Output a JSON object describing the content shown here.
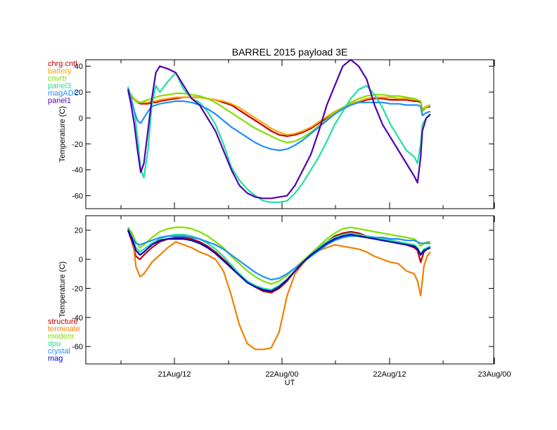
{
  "title": "BARREL 2015 payload 3E",
  "xlabel": "UT",
  "x_ticks": [
    "21Aug/12",
    "22Aug/00",
    "22Aug/12",
    "23Aug/00"
  ],
  "chart_data": [
    {
      "type": "line",
      "ylabel": "Temperature (C)",
      "xlim": [
        0,
        42
      ],
      "ylim": [
        -70,
        45
      ],
      "y_ticks": [
        -60,
        -40,
        -20,
        0,
        20,
        40
      ],
      "x": [
        0,
        0.4,
        0.8,
        1.2,
        1.6,
        2,
        2.5,
        3,
        3.5,
        4,
        5,
        6,
        7,
        8,
        9,
        10,
        11,
        12,
        13,
        14,
        15,
        16,
        17,
        18,
        19,
        20,
        21,
        22,
        23,
        24,
        25,
        26,
        27,
        28,
        29,
        30,
        31,
        32,
        33,
        34,
        35,
        36,
        36.4,
        36.8,
        37,
        37.5,
        38
      ],
      "series": [
        {
          "name": "chrg cntl",
          "color": "#c00000",
          "values": [
            19,
            17,
            14,
            12,
            11,
            11,
            11,
            12,
            12,
            13,
            14,
            15,
            16,
            16,
            16,
            15,
            14,
            12,
            10,
            6,
            2,
            -2,
            -6,
            -10,
            -13,
            -14,
            -13,
            -11,
            -8,
            -4,
            0,
            4,
            7,
            10,
            12,
            14,
            15,
            15,
            14,
            14,
            14,
            13,
            13,
            12,
            6,
            8,
            9
          ]
        },
        {
          "name": "battery",
          "color": "#ffa500",
          "values": [
            19,
            17,
            15,
            13,
            12,
            12,
            12,
            13,
            13,
            14,
            15,
            16,
            16,
            16,
            16,
            15,
            14,
            13,
            11,
            8,
            4,
            0,
            -4,
            -8,
            -11,
            -13,
            -12,
            -10,
            -7,
            -3,
            1,
            5,
            8,
            11,
            13,
            15,
            16,
            16,
            16,
            15,
            15,
            14,
            14,
            13,
            7,
            9,
            10
          ]
        },
        {
          "name": "cnvrtr",
          "color": "#80e000",
          "values": [
            22,
            18,
            14,
            12,
            12,
            13,
            14,
            15,
            16,
            17,
            18,
            19,
            19,
            18,
            17,
            15,
            12,
            8,
            4,
            0,
            -4,
            -8,
            -11,
            -14,
            -17,
            -19,
            -18,
            -15,
            -11,
            -6,
            -1,
            4,
            8,
            12,
            15,
            17,
            18,
            18,
            17,
            17,
            16,
            15,
            14,
            13,
            5,
            8,
            10
          ]
        },
        {
          "name": "panel3",
          "color": "#20e0a0",
          "values": [
            24,
            15,
            5,
            -15,
            -40,
            -46,
            -25,
            10,
            25,
            20,
            28,
            35,
            22,
            15,
            12,
            5,
            -5,
            -20,
            -38,
            -48,
            -55,
            -60,
            -64,
            -65,
            -65,
            -64,
            -58,
            -50,
            -40,
            -30,
            -18,
            -5,
            5,
            15,
            22,
            25,
            18,
            8,
            -5,
            -15,
            -25,
            -30,
            -35,
            -20,
            -5,
            0,
            2
          ]
        },
        {
          "name": "magADC",
          "color": "#1e90ff",
          "values": [
            23,
            15,
            5,
            -2,
            -4,
            0,
            5,
            9,
            10,
            11,
            12,
            13,
            13,
            12,
            10,
            7,
            3,
            -2,
            -7,
            -11,
            -15,
            -19,
            -22,
            -24,
            -25,
            -24,
            -21,
            -17,
            -12,
            -7,
            -2,
            3,
            7,
            10,
            12,
            12,
            12,
            12,
            11,
            11,
            10,
            10,
            10,
            9,
            2,
            4,
            5
          ]
        },
        {
          "name": "panel1",
          "color": "#5000b0",
          "values": [
            22,
            10,
            -5,
            -25,
            -42,
            -35,
            -10,
            15,
            35,
            40,
            38,
            35,
            25,
            15,
            10,
            0,
            -10,
            -25,
            -40,
            -52,
            -58,
            -61,
            -62,
            -62,
            -61,
            -60,
            -52,
            -40,
            -28,
            -10,
            10,
            25,
            40,
            45,
            40,
            30,
            10,
            -5,
            -15,
            -25,
            -35,
            -45,
            -50,
            -30,
            -10,
            0,
            3
          ]
        }
      ]
    },
    {
      "type": "line",
      "ylabel": "Temperature (C)",
      "xlim": [
        0,
        42
      ],
      "ylim": [
        -72,
        30
      ],
      "y_ticks": [
        -60,
        -40,
        -20,
        0,
        20
      ],
      "x": [
        0,
        0.5,
        1,
        1.5,
        2,
        3,
        4,
        5,
        6,
        7,
        8,
        9,
        10,
        11,
        12,
        13,
        14,
        15,
        16,
        17,
        18,
        19,
        20,
        21,
        22,
        23,
        24,
        25,
        26,
        27,
        28,
        29,
        30,
        31,
        32,
        33,
        34,
        35,
        36,
        36.4,
        36.8,
        37.2,
        37.6,
        38
      ],
      "series": [
        {
          "name": "structure",
          "color": "#c00000",
          "values": [
            20,
            12,
            2,
            0,
            3,
            8,
            12,
            14,
            15,
            15,
            14,
            12,
            9,
            5,
            0,
            -5,
            -10,
            -15,
            -19,
            -22,
            -23,
            -20,
            -15,
            -8,
            -2,
            3,
            8,
            12,
            16,
            18,
            19,
            18,
            16,
            15,
            14,
            13,
            12,
            10,
            8,
            6,
            -2,
            5,
            7,
            8
          ]
        },
        {
          "name": "terminate",
          "color": "#f08000",
          "values": [
            22,
            18,
            -5,
            -12,
            -10,
            -2,
            3,
            8,
            12,
            10,
            8,
            5,
            3,
            0,
            -8,
            -25,
            -45,
            -58,
            -62,
            -62,
            -61,
            -50,
            -25,
            -10,
            -3,
            3,
            6,
            8,
            10,
            9,
            8,
            7,
            5,
            2,
            0,
            -2,
            -3,
            -8,
            -10,
            -15,
            -25,
            -5,
            2,
            5
          ]
        },
        {
          "name": "modem",
          "color": "#80e000",
          "values": [
            22,
            18,
            12,
            8,
            10,
            15,
            19,
            21,
            22,
            22,
            21,
            19,
            16,
            12,
            8,
            2,
            -3,
            -8,
            -12,
            -15,
            -17,
            -15,
            -11,
            -6,
            -1,
            4,
            9,
            14,
            18,
            21,
            22,
            21,
            20,
            19,
            18,
            17,
            16,
            15,
            14,
            12,
            9,
            11,
            12,
            12
          ]
        },
        {
          "name": "dpu",
          "color": "#20e0a0",
          "values": [
            21,
            15,
            8,
            5,
            7,
            11,
            14,
            16,
            17,
            17,
            16,
            14,
            11,
            7,
            2,
            -4,
            -10,
            -15,
            -18,
            -20,
            -21,
            -18,
            -14,
            -8,
            -2,
            3,
            8,
            12,
            15,
            17,
            18,
            17,
            16,
            15,
            14,
            13,
            12,
            11,
            10,
            8,
            4,
            7,
            8,
            9
          ]
        },
        {
          "name": "crystal",
          "color": "#1e90ff",
          "values": [
            21,
            15,
            11,
            10,
            11,
            13,
            15,
            16,
            16,
            16,
            15,
            14,
            12,
            10,
            7,
            3,
            -1,
            -5,
            -9,
            -12,
            -14,
            -13,
            -10,
            -6,
            -2,
            2,
            6,
            10,
            13,
            15,
            16,
            16,
            15,
            15,
            15,
            14,
            14,
            13,
            13,
            12,
            11,
            11,
            11,
            11
          ]
        },
        {
          "name": "mag",
          "color": "#0000c0",
          "values": [
            20,
            14,
            6,
            3,
            5,
            10,
            13,
            14,
            14,
            14,
            13,
            11,
            8,
            4,
            -1,
            -6,
            -11,
            -16,
            -19,
            -21,
            -22,
            -19,
            -14,
            -8,
            -2,
            3,
            7,
            11,
            14,
            16,
            17,
            16,
            15,
            14,
            13,
            12,
            11,
            10,
            9,
            7,
            3,
            6,
            7,
            8
          ]
        }
      ]
    }
  ]
}
